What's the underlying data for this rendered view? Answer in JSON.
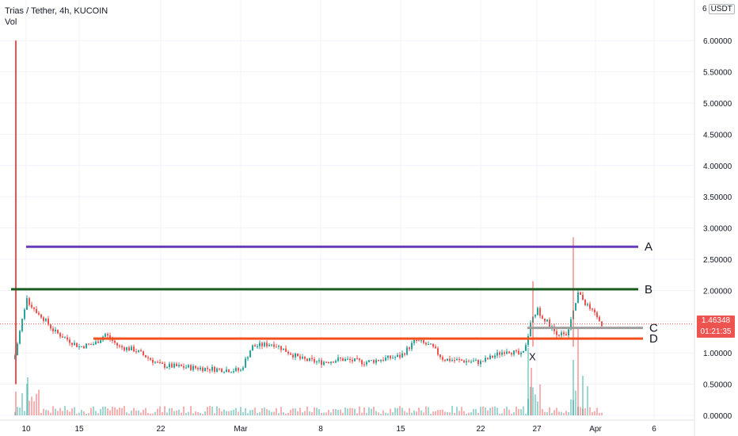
{
  "header": {
    "symbol_line": "Trias / Tether, 4h, KUCOIN",
    "volume_label": "Vol"
  },
  "price_scale": {
    "top_value": "6",
    "unit": "USDT",
    "tick_labels": [
      "6.00000",
      "5.50000",
      "5.00000",
      "4.50000",
      "4.00000",
      "3.50000",
      "3.00000",
      "2.50000",
      "2.00000",
      "1.50000",
      "1.00000",
      "0.50000",
      "0.00000"
    ]
  },
  "last_price": {
    "value": "1.46348",
    "countdown": "01:21:35",
    "color": "#ef5350"
  },
  "time_axis": {
    "labels": [
      "10",
      "15",
      "22",
      "Mar",
      "8",
      "15",
      "22",
      "27",
      "Apr",
      "6"
    ]
  },
  "chart_data": {
    "type": "candlestick",
    "up_color": "#26a69a",
    "down_color": "#ef5350",
    "y_range": [
      0,
      6.2
    ],
    "grid": true,
    "price_path": [
      {
        "x": "10",
        "y": 0.9
      },
      {
        "x": "11",
        "y": 1.85
      },
      {
        "x": "12",
        "y": 1.6
      },
      {
        "x": "13",
        "y": 1.35
      },
      {
        "x": "15",
        "y": 1.1
      },
      {
        "x": "17",
        "y": 1.15
      },
      {
        "x": "18",
        "y": 1.3
      },
      {
        "x": "19",
        "y": 1.1
      },
      {
        "x": "20",
        "y": 1.05
      },
      {
        "x": "22",
        "y": 0.8
      },
      {
        "x": "25",
        "y": 0.75
      },
      {
        "x": "Mar",
        "y": 0.72
      },
      {
        "x": "2",
        "y": 1.1
      },
      {
        "x": "4",
        "y": 1.15
      },
      {
        "x": "6",
        "y": 0.9
      },
      {
        "x": "8",
        "y": 0.85
      },
      {
        "x": "10",
        "y": 0.9
      },
      {
        "x": "12",
        "y": 0.85
      },
      {
        "x": "15",
        "y": 0.95
      },
      {
        "x": "16",
        "y": 1.2
      },
      {
        "x": "18",
        "y": 1.1
      },
      {
        "x": "19",
        "y": 0.9
      },
      {
        "x": "22",
        "y": 0.85
      },
      {
        "x": "24",
        "y": 1.05
      },
      {
        "x": "25",
        "y": 0.95
      },
      {
        "x": "26",
        "y": 1.45
      },
      {
        "x": "27",
        "y": 1.7
      },
      {
        "x": "28",
        "y": 1.35
      },
      {
        "x": "29",
        "y": 1.25
      },
      {
        "x": "30",
        "y": 1.95
      },
      {
        "x": "31",
        "y": 1.7
      },
      {
        "x": "Apr",
        "y": 1.46
      }
    ],
    "spikes": [
      {
        "x": "10",
        "high": 6.0,
        "low": 0.5
      },
      {
        "x": "27",
        "high": 2.15,
        "low": 1.1
      },
      {
        "x": "30",
        "high": 2.85,
        "low": 1.1
      }
    ],
    "horizontal_lines": [
      {
        "label": "A",
        "value": 2.7,
        "color": "#673ab7"
      },
      {
        "label": "B",
        "value": 2.02,
        "color": "#1b5e20"
      },
      {
        "label": "C",
        "value": 1.4,
        "color": "#9e9e9e"
      },
      {
        "label": "D",
        "value": 1.23,
        "color": "#f4511e"
      }
    ],
    "annotations": [
      {
        "text": "X",
        "x": "27",
        "y": 0.93
      }
    ]
  }
}
